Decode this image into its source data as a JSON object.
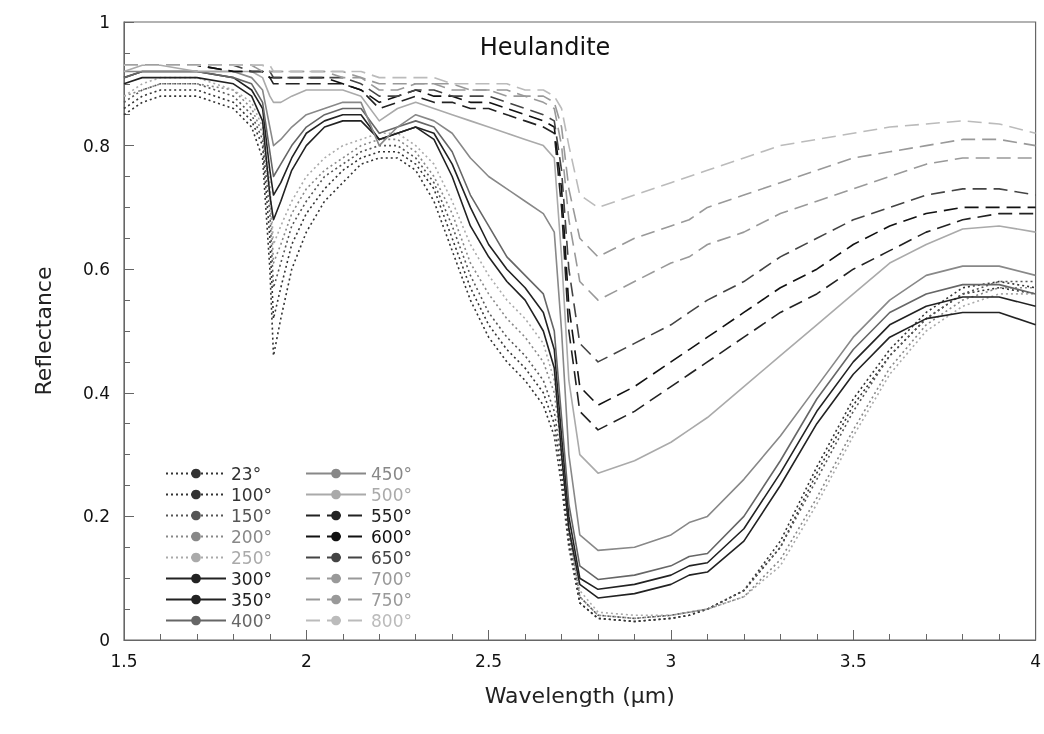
{
  "chart_data": {
    "type": "line",
    "title": "Heulandite",
    "xlabel": "Wavelength (µm)",
    "ylabel": "Reflectance",
    "xlim": [
      1.5,
      4
    ],
    "xticks": [
      1.5,
      2,
      2.5,
      3,
      3.5,
      4
    ],
    "ylim": [
      0,
      1
    ],
    "yticks": [
      0,
      0.2,
      0.4,
      0.6,
      0.8,
      1
    ],
    "grid": false,
    "legend": "bottom left",
    "x": [
      1.5,
      1.55,
      1.6,
      1.7,
      1.8,
      1.85,
      1.88,
      1.9,
      1.91,
      1.93,
      1.96,
      2.0,
      2.05,
      2.1,
      2.15,
      2.2,
      2.25,
      2.3,
      2.35,
      2.4,
      2.45,
      2.5,
      2.55,
      2.6,
      2.65,
      2.68,
      2.7,
      2.72,
      2.75,
      2.8,
      2.9,
      3.0,
      3.05,
      3.1,
      3.2,
      3.3,
      3.4,
      3.5,
      3.6,
      3.7,
      3.8,
      3.9,
      4.0
    ],
    "series": [
      {
        "name": "23°",
        "color": "#333333",
        "line_style": "dotted",
        "values": [
          0.85,
          0.87,
          0.88,
          0.88,
          0.86,
          0.83,
          0.78,
          0.6,
          0.46,
          0.52,
          0.6,
          0.66,
          0.71,
          0.74,
          0.77,
          0.78,
          0.78,
          0.76,
          0.71,
          0.63,
          0.55,
          0.49,
          0.45,
          0.42,
          0.38,
          0.33,
          0.25,
          0.15,
          0.06,
          0.035,
          0.03,
          0.035,
          0.04,
          0.05,
          0.08,
          0.15,
          0.27,
          0.38,
          0.46,
          0.52,
          0.56,
          0.57,
          0.56
        ]
      },
      {
        "name": "100°",
        "color": "#333333",
        "line_style": "dotted",
        "values": [
          0.86,
          0.88,
          0.89,
          0.89,
          0.87,
          0.84,
          0.8,
          0.65,
          0.52,
          0.57,
          0.64,
          0.69,
          0.73,
          0.76,
          0.78,
          0.79,
          0.79,
          0.77,
          0.73,
          0.65,
          0.57,
          0.51,
          0.47,
          0.44,
          0.4,
          0.35,
          0.27,
          0.16,
          0.06,
          0.035,
          0.03,
          0.035,
          0.04,
          0.05,
          0.08,
          0.16,
          0.28,
          0.39,
          0.47,
          0.53,
          0.57,
          0.58,
          0.57
        ]
      },
      {
        "name": "150°",
        "color": "#555555",
        "line_style": "dotted",
        "values": [
          0.87,
          0.89,
          0.9,
          0.9,
          0.88,
          0.85,
          0.81,
          0.69,
          0.57,
          0.61,
          0.67,
          0.71,
          0.75,
          0.77,
          0.79,
          0.8,
          0.8,
          0.78,
          0.74,
          0.67,
          0.59,
          0.53,
          0.49,
          0.46,
          0.42,
          0.37,
          0.29,
          0.17,
          0.07,
          0.04,
          0.035,
          0.04,
          0.045,
          0.05,
          0.08,
          0.15,
          0.26,
          0.37,
          0.46,
          0.52,
          0.56,
          0.58,
          0.58
        ]
      },
      {
        "name": "200°",
        "color": "#888888",
        "line_style": "dotted",
        "values": [
          0.88,
          0.89,
          0.9,
          0.9,
          0.89,
          0.86,
          0.82,
          0.72,
          0.61,
          0.64,
          0.69,
          0.73,
          0.76,
          0.78,
          0.8,
          0.81,
          0.81,
          0.79,
          0.75,
          0.69,
          0.61,
          0.56,
          0.52,
          0.49,
          0.45,
          0.4,
          0.31,
          0.18,
          0.07,
          0.04,
          0.035,
          0.04,
          0.045,
          0.05,
          0.07,
          0.13,
          0.23,
          0.34,
          0.44,
          0.51,
          0.55,
          0.57,
          0.57
        ]
      },
      {
        "name": "250°",
        "color": "#aaaaaa",
        "line_style": "dotted",
        "values": [
          0.88,
          0.9,
          0.91,
          0.91,
          0.89,
          0.87,
          0.83,
          0.74,
          0.64,
          0.67,
          0.71,
          0.75,
          0.78,
          0.8,
          0.81,
          0.82,
          0.82,
          0.8,
          0.77,
          0.71,
          0.64,
          0.59,
          0.55,
          0.52,
          0.48,
          0.42,
          0.33,
          0.19,
          0.08,
          0.045,
          0.04,
          0.04,
          0.045,
          0.05,
          0.07,
          0.12,
          0.22,
          0.33,
          0.43,
          0.5,
          0.54,
          0.56,
          0.56
        ]
      },
      {
        "name": "300°",
        "color": "#222222",
        "line_style": "solid",
        "values": [
          0.9,
          0.91,
          0.91,
          0.91,
          0.9,
          0.88,
          0.84,
          0.72,
          0.68,
          0.71,
          0.76,
          0.8,
          0.83,
          0.84,
          0.84,
          0.81,
          0.82,
          0.83,
          0.81,
          0.75,
          0.67,
          0.62,
          0.58,
          0.55,
          0.5,
          0.44,
          0.3,
          0.18,
          0.09,
          0.068,
          0.075,
          0.09,
          0.105,
          0.11,
          0.16,
          0.25,
          0.35,
          0.43,
          0.49,
          0.52,
          0.53,
          0.53,
          0.51
        ]
      },
      {
        "name": "350°",
        "color": "#222222",
        "line_style": "solid",
        "values": [
          0.91,
          0.92,
          0.92,
          0.92,
          0.91,
          0.89,
          0.86,
          0.76,
          0.72,
          0.74,
          0.78,
          0.82,
          0.84,
          0.85,
          0.85,
          0.81,
          0.82,
          0.83,
          0.82,
          0.77,
          0.7,
          0.64,
          0.6,
          0.57,
          0.53,
          0.47,
          0.33,
          0.2,
          0.1,
          0.082,
          0.09,
          0.105,
          0.12,
          0.125,
          0.18,
          0.27,
          0.37,
          0.45,
          0.51,
          0.54,
          0.555,
          0.555,
          0.54
        ]
      },
      {
        "name": "400°",
        "color": "#666666",
        "line_style": "solid",
        "values": [
          0.91,
          0.92,
          0.92,
          0.92,
          0.91,
          0.9,
          0.87,
          0.79,
          0.75,
          0.77,
          0.8,
          0.83,
          0.85,
          0.86,
          0.86,
          0.82,
          0.83,
          0.84,
          0.83,
          0.79,
          0.72,
          0.67,
          0.62,
          0.59,
          0.56,
          0.5,
          0.36,
          0.22,
          0.12,
          0.098,
          0.105,
          0.12,
          0.135,
          0.14,
          0.2,
          0.29,
          0.39,
          0.47,
          0.53,
          0.56,
          0.575,
          0.575,
          0.56
        ]
      },
      {
        "name": "450°",
        "color": "#888888",
        "line_style": "solid",
        "values": [
          0.92,
          0.92,
          0.92,
          0.92,
          0.92,
          0.91,
          0.89,
          0.83,
          0.8,
          0.81,
          0.83,
          0.85,
          0.86,
          0.87,
          0.87,
          0.8,
          0.83,
          0.85,
          0.84,
          0.82,
          0.78,
          0.75,
          0.73,
          0.71,
          0.69,
          0.66,
          0.5,
          0.3,
          0.17,
          0.145,
          0.15,
          0.17,
          0.19,
          0.2,
          0.26,
          0.33,
          0.41,
          0.49,
          0.55,
          0.59,
          0.605,
          0.605,
          0.59
        ]
      },
      {
        "name": "500°",
        "color": "#aaaaaa",
        "line_style": "solid",
        "values": [
          0.92,
          0.93,
          0.93,
          0.92,
          0.92,
          0.92,
          0.91,
          0.88,
          0.87,
          0.87,
          0.88,
          0.89,
          0.89,
          0.89,
          0.88,
          0.84,
          0.86,
          0.87,
          0.86,
          0.85,
          0.84,
          0.83,
          0.82,
          0.81,
          0.8,
          0.78,
          0.62,
          0.42,
          0.3,
          0.27,
          0.29,
          0.32,
          0.34,
          0.36,
          0.41,
          0.46,
          0.51,
          0.56,
          0.61,
          0.64,
          0.665,
          0.67,
          0.66
        ]
      },
      {
        "name": "550°",
        "color": "#222222",
        "line_style": "dashed",
        "values": [
          0.93,
          0.93,
          0.93,
          0.93,
          0.92,
          0.92,
          0.92,
          0.91,
          0.9,
          0.9,
          0.9,
          0.9,
          0.9,
          0.9,
          0.89,
          0.86,
          0.87,
          0.88,
          0.87,
          0.87,
          0.86,
          0.86,
          0.85,
          0.84,
          0.83,
          0.82,
          0.7,
          0.5,
          0.37,
          0.34,
          0.37,
          0.41,
          0.43,
          0.45,
          0.49,
          0.53,
          0.56,
          0.6,
          0.63,
          0.66,
          0.68,
          0.69,
          0.69
        ]
      },
      {
        "name": "600°",
        "color": "#111111",
        "line_style": "dashed",
        "values": [
          0.93,
          0.93,
          0.93,
          0.93,
          0.92,
          0.92,
          0.92,
          0.91,
          0.91,
          0.91,
          0.91,
          0.91,
          0.91,
          0.9,
          0.89,
          0.87,
          0.88,
          0.89,
          0.88,
          0.88,
          0.87,
          0.87,
          0.86,
          0.85,
          0.84,
          0.83,
          0.73,
          0.54,
          0.41,
          0.38,
          0.41,
          0.45,
          0.47,
          0.49,
          0.53,
          0.57,
          0.6,
          0.64,
          0.67,
          0.69,
          0.7,
          0.7,
          0.7
        ]
      },
      {
        "name": "650°",
        "color": "#444444",
        "line_style": "dashed",
        "values": [
          0.93,
          0.93,
          0.93,
          0.93,
          0.93,
          0.92,
          0.92,
          0.92,
          0.91,
          0.91,
          0.91,
          0.91,
          0.91,
          0.91,
          0.9,
          0.88,
          0.88,
          0.89,
          0.89,
          0.88,
          0.88,
          0.88,
          0.87,
          0.86,
          0.85,
          0.84,
          0.76,
          0.6,
          0.48,
          0.45,
          0.48,
          0.51,
          0.53,
          0.55,
          0.58,
          0.62,
          0.65,
          0.68,
          0.7,
          0.72,
          0.73,
          0.73,
          0.72
        ]
      },
      {
        "name": "700°",
        "color": "#999999",
        "line_style": "dashed",
        "values": [
          0.93,
          0.93,
          0.93,
          0.93,
          0.93,
          0.93,
          0.92,
          0.92,
          0.92,
          0.92,
          0.92,
          0.92,
          0.92,
          0.91,
          0.91,
          0.89,
          0.89,
          0.9,
          0.9,
          0.89,
          0.89,
          0.89,
          0.88,
          0.88,
          0.87,
          0.86,
          0.8,
          0.68,
          0.58,
          0.55,
          0.58,
          0.61,
          0.62,
          0.64,
          0.66,
          0.69,
          0.71,
          0.73,
          0.75,
          0.77,
          0.78,
          0.78,
          0.78
        ]
      },
      {
        "name": "750°",
        "color": "#999999",
        "line_style": "dashed",
        "values": [
          0.93,
          0.93,
          0.93,
          0.93,
          0.93,
          0.93,
          0.93,
          0.92,
          0.92,
          0.92,
          0.92,
          0.92,
          0.92,
          0.92,
          0.91,
          0.9,
          0.9,
          0.9,
          0.9,
          0.9,
          0.89,
          0.89,
          0.89,
          0.88,
          0.88,
          0.87,
          0.83,
          0.73,
          0.65,
          0.62,
          0.65,
          0.67,
          0.68,
          0.7,
          0.72,
          0.74,
          0.76,
          0.78,
          0.79,
          0.8,
          0.81,
          0.81,
          0.8
        ]
      },
      {
        "name": "800°",
        "color": "#bbbbbb",
        "line_style": "dashed",
        "values": [
          0.93,
          0.93,
          0.93,
          0.93,
          0.93,
          0.93,
          0.93,
          0.93,
          0.92,
          0.92,
          0.92,
          0.92,
          0.92,
          0.92,
          0.92,
          0.91,
          0.91,
          0.91,
          0.91,
          0.9,
          0.9,
          0.9,
          0.9,
          0.89,
          0.89,
          0.88,
          0.86,
          0.8,
          0.72,
          0.7,
          0.72,
          0.74,
          0.75,
          0.76,
          0.78,
          0.8,
          0.81,
          0.82,
          0.83,
          0.835,
          0.84,
          0.835,
          0.82
        ]
      }
    ]
  }
}
